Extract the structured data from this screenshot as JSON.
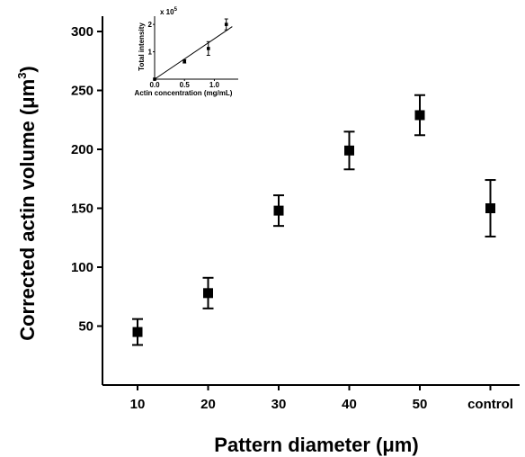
{
  "chart_data": [
    {
      "type": "scatter",
      "xlabel": "Pattern diameter (μm)",
      "ylabel": "Corrected actin volume (μm³)",
      "categories": [
        "10",
        "20",
        "30",
        "40",
        "50",
        "control"
      ],
      "values": [
        45,
        78,
        148,
        199,
        229,
        150
      ],
      "errors": [
        11,
        13,
        13,
        16,
        17,
        24
      ],
      "ylim": [
        0,
        300
      ],
      "yticks": [
        50,
        100,
        150,
        200,
        250,
        300
      ],
      "ylabel_text": "Corrected actin volume (μm",
      "ylabel_sup": "3",
      "ylabel_close": ")"
    },
    {
      "type": "scatter",
      "title": "inset",
      "xlabel": "Actin concentration (mg/mL)",
      "ylabel": "Total intensity",
      "multiplier": "x 10",
      "multiplier_exp": "5",
      "x": [
        0.0,
        0.5,
        0.9,
        1.2
      ],
      "y": [
        0.0,
        0.65,
        1.12,
        2.0
      ],
      "errors": [
        0.0,
        0.06,
        0.25,
        0.2
      ],
      "fit_line": {
        "x": [
          0.0,
          1.3
        ],
        "y": [
          0.0,
          1.92
        ]
      },
      "xlim": [
        0.0,
        1.4
      ],
      "ylim": [
        0.0,
        2.3
      ],
      "xticks": [
        "0.0",
        "0.5",
        "1.0"
      ],
      "yticks": [
        "1",
        "2"
      ]
    }
  ]
}
